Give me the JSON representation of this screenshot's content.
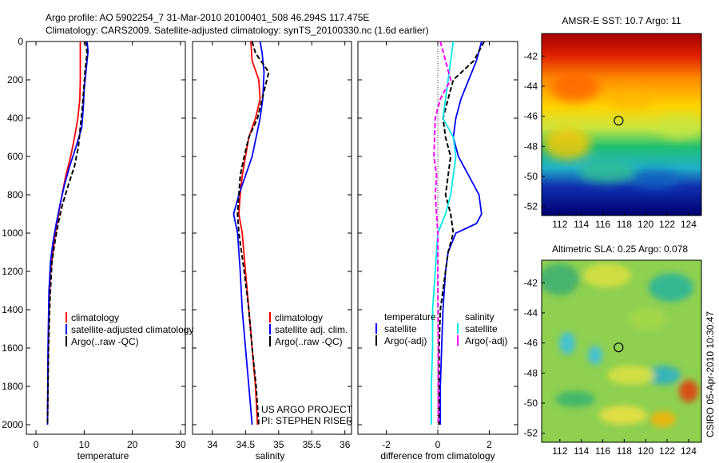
{
  "title_line1": "Argo profile: AO 5902254_7 31-Mar-2010 20100401_508 46.294S 117.475E",
  "title_line2": "Climatology: CARS2009. Satellite-adjusted climatology: synTS_20100330.nc (1.6d earlier)",
  "watermark": "CSIRO 05-Apr-2010 10:30:47",
  "colors": {
    "red": "#ff0000",
    "blue": "#0000ff",
    "black": "#000000",
    "cyan": "#00e8e8",
    "magenta": "#ff00ff"
  },
  "chart_data": [
    {
      "id": "temperature",
      "type": "line",
      "xlabel": "temperature",
      "xlim": [
        -2,
        31
      ],
      "xticks": [
        0,
        10,
        20,
        30
      ],
      "ylim": [
        0,
        2050
      ],
      "yticks": [
        0,
        200,
        400,
        600,
        800,
        1000,
        1200,
        1400,
        1600,
        1800,
        2000
      ],
      "y_reversed": true,
      "legend": {
        "position": "lower-right",
        "entries": [
          "climatology",
          "satellite-adjusted climatology",
          "Argo(..raw -QC)"
        ]
      },
      "series": [
        {
          "name": "climatology",
          "color": "red",
          "style": "solid",
          "x": [
            9.2,
            9.2,
            9.2,
            9.1,
            8.7,
            8.0,
            7.2,
            6.2,
            5.4,
            4.7,
            4.0,
            3.5,
            3.0,
            2.7,
            2.5,
            2.4
          ],
          "y": [
            0,
            100,
            200,
            300,
            400,
            500,
            600,
            700,
            800,
            900,
            1000,
            1100,
            1200,
            1400,
            1700,
            2000
          ]
        },
        {
          "name": "satellite-adjusted climatology",
          "color": "blue",
          "style": "solid",
          "x": [
            10.6,
            10.8,
            10.4,
            10.0,
            9.8,
            9.5,
            8.3,
            7.0,
            5.9,
            5.0,
            4.2,
            3.5,
            3.0,
            2.7,
            2.5,
            2.4
          ],
          "y": [
            0,
            50,
            150,
            250,
            350,
            450,
            550,
            650,
            750,
            850,
            950,
            1050,
            1150,
            1300,
            1600,
            2000
          ]
        },
        {
          "name": "Argo(..raw -QC)",
          "color": "black",
          "style": "dashed",
          "x": [
            10.3,
            10.6,
            10.2,
            9.9,
            9.6,
            9.2,
            8.8,
            8.0,
            6.7,
            5.5,
            4.6,
            3.9,
            3.3,
            2.9,
            2.6,
            2.4
          ],
          "y": [
            0,
            60,
            150,
            250,
            350,
            450,
            550,
            650,
            750,
            850,
            950,
            1050,
            1150,
            1350,
            1600,
            2000
          ]
        }
      ]
    },
    {
      "id": "salinity",
      "type": "line",
      "xlabel": "salinity",
      "xlim": [
        33.7,
        36.1
      ],
      "xticks": [
        34,
        34.5,
        35,
        35.5,
        36
      ],
      "ylim": [
        0,
        2050
      ],
      "y_reversed": true,
      "legend": {
        "position": "lower-right",
        "entries": [
          "climatology",
          "satellite adj. clim.",
          "Argo(..raw -QC)"
        ]
      },
      "annotation": [
        "US ARGO PROJECT",
        "PI: STEPHEN RISER"
      ],
      "series": [
        {
          "name": "climatology",
          "color": "red",
          "style": "solid",
          "x": [
            34.58,
            34.6,
            34.7,
            34.72,
            34.65,
            34.55,
            34.5,
            34.45,
            34.42,
            34.4,
            34.45,
            34.5,
            34.55,
            34.6,
            34.65,
            34.68
          ],
          "y": [
            0,
            100,
            200,
            300,
            400,
            500,
            600,
            700,
            800,
            900,
            1000,
            1200,
            1400,
            1600,
            1800,
            2000
          ]
        },
        {
          "name": "satellite adj. clim.",
          "color": "blue",
          "style": "solid",
          "x": [
            34.72,
            34.75,
            34.78,
            34.76,
            34.72,
            34.66,
            34.6,
            34.5,
            34.4,
            34.32,
            34.38,
            34.42,
            34.45,
            34.5,
            34.55,
            34.6
          ],
          "y": [
            0,
            60,
            160,
            300,
            400,
            500,
            600,
            700,
            800,
            900,
            1000,
            1200,
            1400,
            1600,
            1800,
            2000
          ]
        },
        {
          "name": "Argo(..raw -QC)",
          "color": "black",
          "style": "dashed",
          "x": [
            34.6,
            34.65,
            34.85,
            34.75,
            34.68,
            34.55,
            34.48,
            34.42,
            34.4,
            34.38,
            34.4,
            34.48,
            34.55,
            34.6,
            34.66,
            34.7
          ],
          "y": [
            0,
            60,
            160,
            300,
            400,
            500,
            600,
            700,
            800,
            900,
            1000,
            1200,
            1400,
            1600,
            1800,
            2000
          ]
        }
      ]
    },
    {
      "id": "difference",
      "type": "line",
      "xlabel": "difference from climatology",
      "xlim": [
        -3.1,
        3.1
      ],
      "xticks": [
        -2,
        0,
        2
      ],
      "ylim": [
        0,
        2050
      ],
      "y_reversed": true,
      "zero_line": true,
      "legend": {
        "position": "lower-center",
        "groups": [
          {
            "heading": "temperature",
            "entries": [
              "satellite",
              "Argo(-adj)"
            ]
          },
          {
            "heading": "salinity",
            "entries": [
              "satellite",
              "Argo(-adj)"
            ]
          }
        ]
      },
      "series": [
        {
          "name": "temperature satellite",
          "color": "blue",
          "style": "solid",
          "x": [
            1.7,
            1.5,
            1.2,
            0.9,
            0.7,
            0.6,
            0.8,
            1.2,
            1.6,
            1.7,
            1.5,
            0.7,
            0.4,
            0.3,
            0.2,
            0.15,
            0.1,
            0.1
          ],
          "y": [
            0,
            100,
            200,
            300,
            400,
            500,
            600,
            700,
            800,
            900,
            950,
            1000,
            1100,
            1200,
            1400,
            1600,
            1800,
            2000
          ]
        },
        {
          "name": "temperature Argo(-adj)",
          "color": "black",
          "style": "dashed",
          "x": [
            1.8,
            1.4,
            0.6,
            0.4,
            0.2,
            0.3,
            0.5,
            0.4,
            0.3,
            0.5,
            0.6,
            0.4,
            0.3,
            0.2,
            0.1,
            0.05,
            0.05,
            0.05
          ],
          "y": [
            0,
            100,
            200,
            300,
            400,
            500,
            600,
            700,
            800,
            900,
            1000,
            1100,
            1200,
            1300,
            1400,
            1600,
            1800,
            2000
          ]
        },
        {
          "name": "salinity satellite",
          "color": "cyan",
          "style": "solid",
          "x": [
            0.6,
            0.5,
            0.3,
            0.2,
            0.6,
            0.7,
            0.6,
            0.5,
            0.3,
            0.0,
            -0.1,
            -0.2,
            -0.2,
            -0.25,
            -0.25
          ],
          "y": [
            0,
            100,
            300,
            400,
            500,
            600,
            700,
            800,
            900,
            1000,
            1200,
            1400,
            1600,
            1800,
            2000
          ]
        },
        {
          "name": "salinity Argo(-adj)",
          "color": "magenta",
          "style": "dashed",
          "x": [
            0.1,
            0.3,
            0.5,
            0.1,
            -0.1,
            -0.15,
            -0.05,
            -0.1,
            -0.05,
            0.0,
            0.0,
            0.02,
            0.02
          ],
          "y": [
            0,
            100,
            200,
            300,
            400,
            600,
            700,
            800,
            900,
            1000,
            1200,
            1600,
            2000
          ]
        }
      ]
    },
    {
      "id": "sst-map",
      "type": "heatmap",
      "title": "AMSR-E SST: 10.7 Argo: 11",
      "xticks": [
        112,
        114,
        116,
        118,
        120,
        122,
        124
      ],
      "yticks": [
        -42,
        -44,
        -46,
        -48,
        -50,
        -52
      ],
      "xlim": [
        110.3,
        125.2
      ],
      "ylim": [
        -52.6,
        -40.5
      ],
      "marker": {
        "lon": 117.475,
        "lat": -46.294
      }
    },
    {
      "id": "sla-map",
      "type": "heatmap",
      "title": "Altimetric SLA: 0.25 Argo: 0.078",
      "xticks": [
        112,
        114,
        116,
        118,
        120,
        122,
        124
      ],
      "yticks": [
        -42,
        -44,
        -46,
        -48,
        -50,
        -52
      ],
      "xlim": [
        110.3,
        125.2
      ],
      "ylim": [
        -52.6,
        -40.5
      ],
      "marker": {
        "lon": 117.475,
        "lat": -46.294
      }
    }
  ]
}
